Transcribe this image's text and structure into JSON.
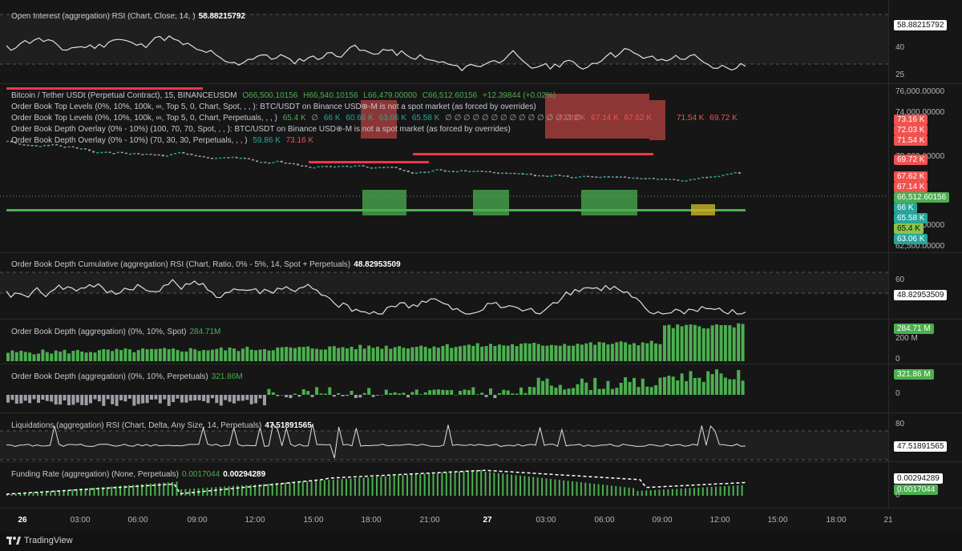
{
  "panes": {
    "oi_rsi": {
      "legend": "Open Interest (aggregation) RSI (Chart, Close, 14, )",
      "value": "58.88215792",
      "ticks": [
        "40",
        "25"
      ],
      "badge": "58.88215792"
    },
    "price": {
      "symbol": "Bitcoin / Tether USDt (Perpetual Contract), 15, BINANCEUSDM",
      "o": "O66,500.10156",
      "h": "H66,540.10156",
      "l": "L66,479.00000",
      "c": "C66,512.60156",
      "chg": "+12.39844 (+0.02%)",
      "line2": "Order Book Top Levels (0%, 10%, 100k, ∞, Top 5, 0, Chart, Spot, , , ): BTC/USDT on Binance USD⊕-M is not a spot market (as forced by overrides)",
      "line3": "Order Book Top Levels (0%, 10%, 100k, ∞, Top 5, 0, Chart, Perpetuals, , , )",
      "line3_vals": [
        "65.4 K",
        "∅",
        "66 K",
        "60.66 K",
        "63.06 K",
        "65.58 K"
      ],
      "line3_tail": "∅ ∅ ∅ ∅ ∅ ∅ ∅ ∅ ∅ ∅ ∅ ∅ ∅ ∅ ∅",
      "line3_red": [
        "72.03 K",
        "67.14 K",
        "67.62 K"
      ],
      "line3_red2": [
        "71.54 K",
        "69.72 K"
      ],
      "line4": "Order Book Depth Overlay (0% - 10%) (100, 70, 70, Spot, , , ): BTC/USDT on Binance USD⊕-M is not a spot market (as forced by overrides)",
      "line5": "Order Book Depth Overlay (0% - 10%) (70, 30, 30, Perpetuals, , , )",
      "line5_vals": [
        "59.86 K",
        "73.16 K"
      ],
      "ticks": [
        "76,000.00000",
        "74,000.00000",
        "70,000.00000",
        "66,000.00000",
        "64,000.00000",
        "62,500.00000"
      ],
      "badges": [
        {
          "t": "73.16 K",
          "c": "red"
        },
        {
          "t": "72.03 K",
          "c": "red"
        },
        {
          "t": "71.54 K",
          "c": "red"
        },
        {
          "t": "69.72 K",
          "c": "red"
        },
        {
          "t": "67.62 K",
          "c": "red"
        },
        {
          "t": "67.14 K",
          "c": "red"
        },
        {
          "t": "66,512.60156",
          "c": "green"
        },
        {
          "t": "66 K",
          "c": "teal"
        },
        {
          "t": "65.58 K",
          "c": "teal"
        },
        {
          "t": "65.4 K",
          "c": "lime"
        },
        {
          "t": "63.06 K",
          "c": "teal"
        }
      ]
    },
    "obd_rsi": {
      "legend": "Order Book Depth Cumulative (aggregation) RSI (Chart, Ratio, 0% - 5%, 14, Spot + Perpetuals)",
      "value": "48.82953509",
      "ticks": [
        "60"
      ],
      "badge": "48.82953509"
    },
    "obd_spot": {
      "legend": "Order Book Depth (aggregation) (0%, 10%, Spot)",
      "value": "284.71M",
      "ticks": [
        "200 M",
        "0"
      ],
      "badge": "284.71 M"
    },
    "obd_perp": {
      "legend": "Order Book Depth (aggregation) (0%, 10%, Perpetuals)",
      "value": "321.86M",
      "ticks": [
        "0"
      ],
      "badge": "321.86 M"
    },
    "liq_rsi": {
      "legend": "Liquidations (aggregation) RSI (Chart, Delta, Any Size, 14, Perpetuals)",
      "value": "47.51891565",
      "ticks": [
        "80"
      ],
      "badge": "47.51891565"
    },
    "funding": {
      "legend": "Funding Rate (aggregation) (None, Perpetuals)",
      "v1": "0.0017044",
      "v2": "0.00294289",
      "ticks": [
        "0"
      ],
      "badge1": "0.00294289",
      "badge2": "0.0017044"
    }
  },
  "time_axis": [
    {
      "t": "26",
      "b": true
    },
    {
      "t": "03:00"
    },
    {
      "t": "06:00"
    },
    {
      "t": "09:00"
    },
    {
      "t": "12:00"
    },
    {
      "t": "15:00"
    },
    {
      "t": "18:00"
    },
    {
      "t": "21:00"
    },
    {
      "t": "27",
      "b": true
    },
    {
      "t": "03:00"
    },
    {
      "t": "06:00"
    },
    {
      "t": "09:00"
    },
    {
      "t": "12:00"
    },
    {
      "t": "15:00"
    },
    {
      "t": "18:00"
    },
    {
      "t": "21"
    }
  ],
  "brand": "TradingView",
  "colors": {
    "green": "#4caf50",
    "red": "#ef5350",
    "teal": "#26a69a",
    "gray": "#9e9ea8",
    "white": "#ffffff"
  }
}
